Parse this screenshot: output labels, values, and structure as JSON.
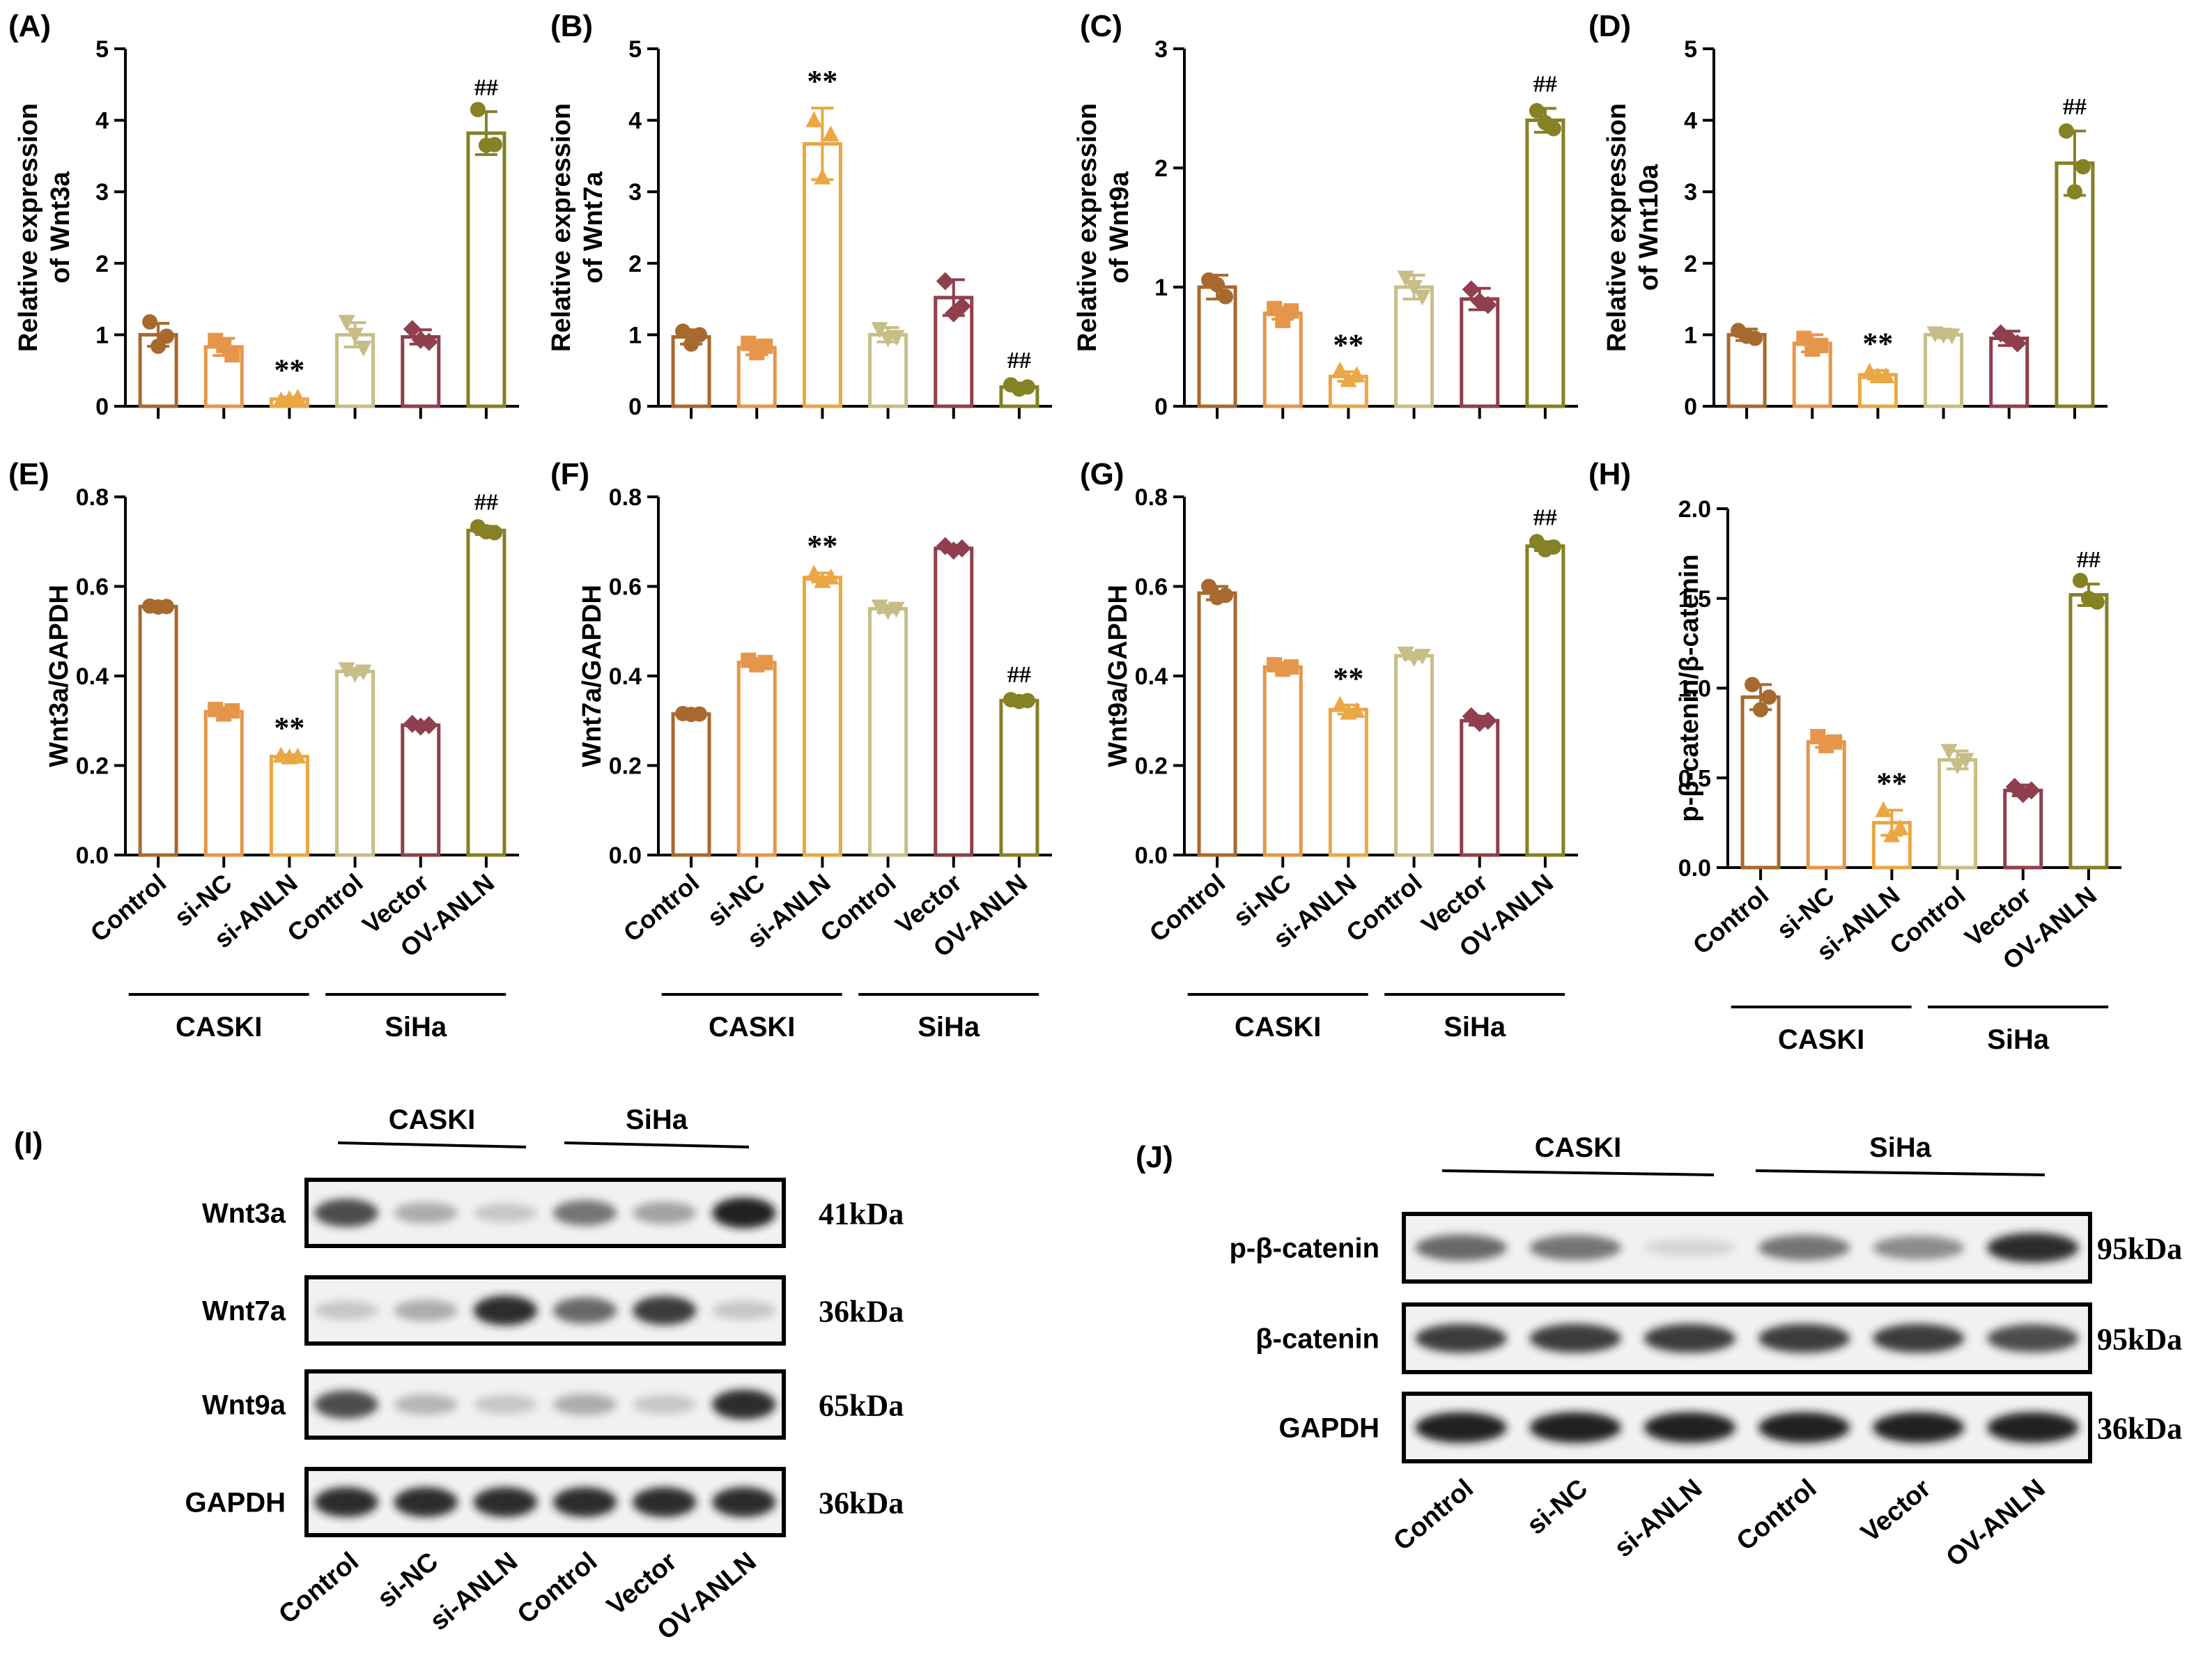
{
  "colors": {
    "axis": "#000000",
    "bars": [
      "#A8692F",
      "#E6964A",
      "#EAA744",
      "#C7BE87",
      "#8F3F4D",
      "#858125"
    ],
    "band": "#1a1a1a"
  },
  "chart_data": [
    {
      "panel": "(A)",
      "type": "bar",
      "ylabel": [
        "Relative expression",
        "of Wnt3a"
      ],
      "ylim": [
        0,
        5
      ],
      "ticks": [
        "0",
        "1",
        "2",
        "3",
        "4",
        "5"
      ],
      "categories": [
        "Control",
        "si-NC",
        "si-ANLN",
        "Control",
        "Vector",
        "OV-ANLN"
      ],
      "values": [
        1.0,
        0.83,
        0.1,
        1.0,
        0.97,
        3.82
      ],
      "errors": [
        0.16,
        0.12,
        0.03,
        0.17,
        0.1,
        0.3
      ],
      "points": [
        [
          1.18,
          0.98,
          0.84
        ],
        [
          0.92,
          0.72,
          0.85
        ],
        [
          0.08,
          0.12,
          0.1
        ],
        [
          1.18,
          0.82,
          1.0
        ],
        [
          1.08,
          0.9,
          0.93
        ],
        [
          4.15,
          3.66,
          3.65
        ]
      ],
      "markers": [
        "circle",
        "square",
        "triangle-up",
        "triangle-down",
        "diamond",
        "circle"
      ],
      "annotations": [
        "",
        "",
        "**",
        "",
        "",
        "##"
      ],
      "show_xlabels": false
    },
    {
      "panel": "(B)",
      "type": "bar",
      "ylabel": [
        "Relative expression",
        "of Wnt7a"
      ],
      "ylim": [
        0,
        5
      ],
      "ticks": [
        "0",
        "1",
        "2",
        "3",
        "4",
        "5"
      ],
      "categories": [
        "Control",
        "si-NC",
        "si-ANLN",
        "Control",
        "Vector",
        "OV-ANLN"
      ],
      "values": [
        0.97,
        0.82,
        3.67,
        1.0,
        1.52,
        0.27
      ],
      "errors": [
        0.1,
        0.1,
        0.5,
        0.1,
        0.25,
        0.03
      ],
      "points": [
        [
          1.05,
          1.0,
          0.87
        ],
        [
          0.88,
          0.84,
          0.75
        ],
        [
          4.0,
          3.8,
          3.2
        ],
        [
          1.08,
          0.97,
          0.95
        ],
        [
          1.75,
          1.4,
          1.3
        ],
        [
          0.3,
          0.27,
          0.24
        ]
      ],
      "markers": [
        "circle",
        "square",
        "triangle-up",
        "triangle-down",
        "diamond",
        "circle"
      ],
      "annotations": [
        "",
        "",
        "**",
        "",
        "",
        "##"
      ],
      "show_xlabels": false
    },
    {
      "panel": "(C)",
      "type": "bar",
      "ylabel": [
        "Relative expression",
        "of Wnt9a"
      ],
      "ylim": [
        0,
        3
      ],
      "ticks": [
        "0",
        "1",
        "2",
        "3"
      ],
      "categories": [
        "Control",
        "si-NC",
        "si-ANLN",
        "Control",
        "Vector",
        "OV-ANLN"
      ],
      "values": [
        1.0,
        0.78,
        0.25,
        1.0,
        0.9,
        2.4
      ],
      "errors": [
        0.1,
        0.05,
        0.04,
        0.1,
        0.09,
        0.1
      ],
      "points": [
        [
          1.06,
          0.92,
          1.02
        ],
        [
          0.82,
          0.8,
          0.72
        ],
        [
          0.3,
          0.26,
          0.22
        ],
        [
          1.08,
          0.92,
          1.0
        ],
        [
          0.98,
          0.85,
          0.88
        ],
        [
          2.48,
          2.33,
          2.38
        ]
      ],
      "markers": [
        "circle",
        "square",
        "triangle-up",
        "triangle-down",
        "diamond",
        "circle"
      ],
      "annotations": [
        "",
        "",
        "**",
        "",
        "",
        "##"
      ],
      "show_xlabels": false
    },
    {
      "panel": "(D)",
      "type": "bar",
      "ylabel": [
        "Relative expression",
        "of Wnt10a"
      ],
      "ylim": [
        0,
        5
      ],
      "ticks": [
        "0",
        "1",
        "2",
        "3",
        "4",
        "5"
      ],
      "categories": [
        "Control",
        "si-NC",
        "si-ANLN",
        "Control",
        "Vector",
        "OV-ANLN"
      ],
      "values": [
        1.0,
        0.88,
        0.44,
        1.0,
        0.95,
        3.4
      ],
      "errors": [
        0.08,
        0.12,
        0.06,
        0.04,
        0.1,
        0.45
      ],
      "points": [
        [
          1.06,
          0.95,
          0.98
        ],
        [
          0.95,
          0.85,
          0.8
        ],
        [
          0.48,
          0.42,
          0.42
        ],
        [
          1.02,
          0.99,
          1.0
        ],
        [
          1.02,
          0.88,
          0.95
        ],
        [
          3.85,
          3.35,
          3.0
        ]
      ],
      "markers": [
        "circle",
        "square",
        "triangle-up",
        "triangle-down",
        "diamond",
        "circle"
      ],
      "annotations": [
        "",
        "",
        "**",
        "",
        "",
        "##"
      ],
      "show_xlabels": false
    },
    {
      "panel": "(E)",
      "type": "bar",
      "ylabel": [
        "Wnt3a/GAPDH"
      ],
      "ylim": [
        0,
        0.8
      ],
      "ticks": [
        "0.0",
        "0.2",
        "0.4",
        "0.6",
        "0.8"
      ],
      "categories": [
        "Control",
        "si-NC",
        "si-ANLN",
        "Control",
        "Vector",
        "OV-ANLN"
      ],
      "values": [
        0.555,
        0.32,
        0.22,
        0.41,
        0.29,
        0.725
      ],
      "errors": [
        0.004,
        0.006,
        0.004,
        0.007,
        0.005,
        0.009
      ],
      "points": [
        [
          0.556,
          0.555,
          0.554
        ],
        [
          0.325,
          0.322,
          0.315
        ],
        [
          0.222,
          0.22,
          0.218
        ],
        [
          0.415,
          0.41,
          0.405
        ],
        [
          0.293,
          0.29,
          0.287
        ],
        [
          0.733,
          0.72,
          0.722
        ]
      ],
      "markers": [
        "circle",
        "square",
        "triangle-up",
        "triangle-down",
        "diamond",
        "circle"
      ],
      "annotations": [
        "",
        "",
        "**",
        "",
        "",
        "##"
      ],
      "show_xlabels": true,
      "groups": [
        {
          "name": "CASKI",
          "from": 0,
          "to": 2
        },
        {
          "name": "SiHa",
          "from": 3,
          "to": 5
        }
      ]
    },
    {
      "panel": "(F)",
      "type": "bar",
      "ylabel": [
        "Wnt7a/GAPDH"
      ],
      "ylim": [
        0,
        0.8
      ],
      "ticks": [
        "0.0",
        "0.2",
        "0.4",
        "0.6",
        "0.8"
      ],
      "categories": [
        "Control",
        "si-NC",
        "si-ANLN",
        "Control",
        "Vector",
        "OV-ANLN"
      ],
      "values": [
        0.315,
        0.43,
        0.62,
        0.55,
        0.685,
        0.345
      ],
      "errors": [
        0.003,
        0.007,
        0.01,
        0.008,
        0.007,
        0.004
      ],
      "points": [
        [
          0.316,
          0.315,
          0.314
        ],
        [
          0.435,
          0.43,
          0.425
        ],
        [
          0.628,
          0.62,
          0.612
        ],
        [
          0.555,
          0.55,
          0.545
        ],
        [
          0.69,
          0.685,
          0.68
        ],
        [
          0.347,
          0.345,
          0.343
        ]
      ],
      "markers": [
        "circle",
        "square",
        "triangle-up",
        "triangle-down",
        "diamond",
        "circle"
      ],
      "annotations": [
        "",
        "",
        "**",
        "",
        "",
        "##"
      ],
      "show_xlabels": true,
      "groups": [
        {
          "name": "CASKI",
          "from": 0,
          "to": 2
        },
        {
          "name": "SiHa",
          "from": 3,
          "to": 5
        }
      ]
    },
    {
      "panel": "(G)",
      "type": "bar",
      "ylabel": [
        "Wnt9a/GAPDH"
      ],
      "ylim": [
        0,
        0.8
      ],
      "ticks": [
        "0.0",
        "0.2",
        "0.4",
        "0.6",
        "0.8"
      ],
      "categories": [
        "Control",
        "si-NC",
        "si-ANLN",
        "Control",
        "Vector",
        "OV-ANLN"
      ],
      "values": [
        0.585,
        0.42,
        0.325,
        0.445,
        0.3,
        0.69
      ],
      "errors": [
        0.015,
        0.005,
        0.01,
        0.007,
        0.01,
        0.01
      ],
      "points": [
        [
          0.6,
          0.58,
          0.575
        ],
        [
          0.425,
          0.42,
          0.415
        ],
        [
          0.335,
          0.322,
          0.318
        ],
        [
          0.45,
          0.445,
          0.44
        ],
        [
          0.31,
          0.3,
          0.295
        ],
        [
          0.7,
          0.688,
          0.682
        ]
      ],
      "markers": [
        "circle",
        "square",
        "triangle-up",
        "triangle-down",
        "diamond",
        "circle"
      ],
      "annotations": [
        "",
        "",
        "**",
        "",
        "",
        "##"
      ],
      "show_xlabels": true,
      "groups": [
        {
          "name": "CASKI",
          "from": 0,
          "to": 2
        },
        {
          "name": "SiHa",
          "from": 3,
          "to": 5
        }
      ]
    },
    {
      "panel": "(H)",
      "type": "bar",
      "ylabel": [
        "p-β-catenin/β-catenin"
      ],
      "ylim": [
        0,
        2.0
      ],
      "ticks": [
        "0.0",
        "0.5",
        "1.0",
        "1.5",
        "2.0"
      ],
      "categories": [
        "Control",
        "si-NC",
        "si-ANLN",
        "Control",
        "Vector",
        "OV-ANLN"
      ],
      "values": [
        0.95,
        0.7,
        0.25,
        0.6,
        0.43,
        1.52
      ],
      "errors": [
        0.07,
        0.03,
        0.07,
        0.05,
        0.03,
        0.06
      ],
      "points": [
        [
          1.02,
          0.95,
          0.88
        ],
        [
          0.73,
          0.7,
          0.68
        ],
        [
          0.32,
          0.22,
          0.18
        ],
        [
          0.65,
          0.6,
          0.57
        ],
        [
          0.45,
          0.43,
          0.41
        ],
        [
          1.6,
          1.48,
          1.5
        ]
      ],
      "markers": [
        "circle",
        "square",
        "triangle-up",
        "triangle-down",
        "diamond",
        "circle"
      ],
      "annotations": [
        "",
        "",
        "**",
        "",
        "",
        "##"
      ],
      "show_xlabels": true,
      "groups": [
        {
          "name": "CASKI",
          "from": 0,
          "to": 2
        },
        {
          "name": "SiHa",
          "from": 3,
          "to": 5
        }
      ]
    }
  ],
  "blots": [
    {
      "panel": "(I)",
      "groups": [
        {
          "name": "CASKI"
        },
        {
          "name": "SiHa"
        }
      ],
      "lanes": [
        "Control",
        "si-NC",
        "si-ANLN",
        "Control",
        "Vector",
        "OV-ANLN"
      ],
      "rows": [
        {
          "label": "Wnt3a",
          "size": "41kDa",
          "intensity": [
            0.85,
            0.45,
            0.3,
            0.7,
            0.5,
            1.0
          ]
        },
        {
          "label": "Wnt7a",
          "size": "36kDa",
          "intensity": [
            0.3,
            0.45,
            0.95,
            0.75,
            0.9,
            0.3
          ]
        },
        {
          "label": "Wnt9a",
          "size": "65kDa",
          "intensity": [
            0.85,
            0.4,
            0.3,
            0.45,
            0.3,
            0.95
          ]
        },
        {
          "label": "GAPDH",
          "size": "36kDa",
          "intensity": [
            0.95,
            0.95,
            0.95,
            0.95,
            0.95,
            0.95
          ]
        }
      ]
    },
    {
      "panel": "(J)",
      "groups": [
        {
          "name": "CASKI"
        },
        {
          "name": "SiHa"
        }
      ],
      "lanes": [
        "Control",
        "si-NC",
        "si-ANLN",
        "Control",
        "Vector",
        "OV-ANLN"
      ],
      "rows": [
        {
          "label": "p-β-catenin",
          "size": "95kDa",
          "intensity": [
            0.75,
            0.7,
            0.2,
            0.7,
            0.6,
            0.95
          ]
        },
        {
          "label": "β-catenin",
          "size": "95kDa",
          "intensity": [
            0.9,
            0.9,
            0.9,
            0.9,
            0.9,
            0.85
          ]
        },
        {
          "label": "GAPDH",
          "size": "36kDa",
          "intensity": [
            1.0,
            1.0,
            1.0,
            1.0,
            1.0,
            1.0
          ]
        }
      ]
    }
  ]
}
